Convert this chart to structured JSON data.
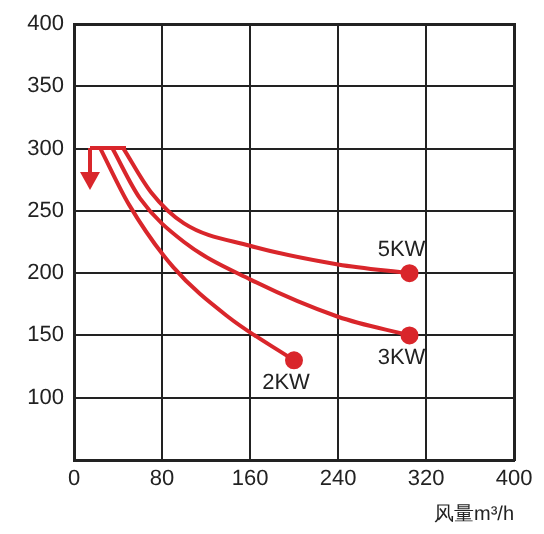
{
  "chart_data": {
    "type": "line",
    "xlabel": "风量m³/h",
    "xlim": [
      0,
      400
    ],
    "xticks": [
      0,
      80,
      160,
      240,
      320,
      400
    ],
    "ylim": [
      50,
      400
    ],
    "yticks": [
      100,
      150,
      200,
      250,
      300,
      350,
      400
    ],
    "grid": true,
    "legend": false,
    "line_style": "solid",
    "series": [
      {
        "name": "5KW",
        "color": "#d9262b",
        "marker": "none",
        "x": [
          45,
          70,
          100,
          160,
          240,
          305
        ],
        "values": [
          300,
          265,
          240,
          222,
          207,
          200
        ]
      },
      {
        "name": "3KW",
        "color": "#d9262b",
        "marker": "none",
        "x": [
          35,
          60,
          100,
          160,
          240,
          305
        ],
        "values": [
          300,
          260,
          225,
          195,
          165,
          150
        ]
      },
      {
        "name": "2KW",
        "color": "#d9262b",
        "marker": "none",
        "x": [
          24,
          50,
          90,
          140,
          200
        ],
        "values": [
          300,
          255,
          205,
          165,
          130
        ]
      },
      {
        "type": "scatter",
        "color": "#d9262b",
        "marker": "circle",
        "x": [
          305,
          305,
          200
        ],
        "values": [
          200,
          150,
          130
        ]
      }
    ]
  }
}
